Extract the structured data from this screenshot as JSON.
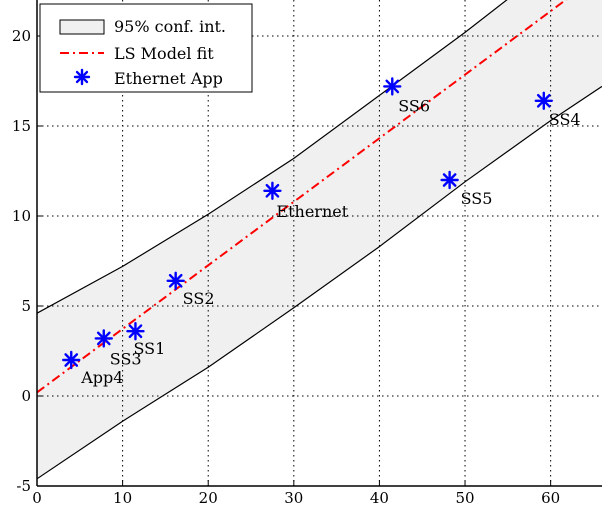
{
  "chart_data": {
    "type": "scatter",
    "title": "",
    "xlabel": "",
    "ylabel": "",
    "xlim": [
      0,
      66
    ],
    "ylim": [
      -5,
      22
    ],
    "xticks": [
      0,
      10,
      20,
      30,
      40,
      50,
      60
    ],
    "yticks": [
      -5,
      0,
      5,
      10,
      15,
      20
    ],
    "grid": true,
    "grid_style": "dotted",
    "legend_position": "top-left",
    "legend": [
      {
        "label": "95% conf. int.",
        "kind": "band"
      },
      {
        "label": "LS Model fit",
        "kind": "line"
      },
      {
        "label": "Ethernet App",
        "kind": "marker"
      }
    ],
    "fit_line": {
      "name": "LS Model fit",
      "x": [
        0,
        66
      ],
      "y": [
        0.2,
        23.5
      ],
      "color": "#ff0000",
      "style": "dash-dot"
    },
    "confidence_band": {
      "name": "95% conf. int.",
      "upper": {
        "x": [
          0,
          10,
          20,
          30,
          40,
          50,
          60,
          66
        ],
        "y": [
          4.6,
          7.2,
          10.1,
          13.2,
          16.7,
          20.2,
          23.9,
          26.1
        ]
      },
      "lower": {
        "x": [
          0,
          10,
          20,
          30,
          40,
          50,
          60,
          66
        ],
        "y": [
          -4.6,
          -1.4,
          1.6,
          4.9,
          8.3,
          11.9,
          15.3,
          17.2
        ]
      },
      "fill": "#f0f0f0",
      "edge": "#000000"
    },
    "series": [
      {
        "name": "Ethernet App",
        "color": "#0000ff",
        "marker": "asterisk",
        "points": [
          {
            "x": 4,
            "y": 2.0,
            "label": "App4"
          },
          {
            "x": 7.8,
            "y": 3.2,
            "label": "SS3"
          },
          {
            "x": 11.5,
            "y": 3.6,
            "label": "SS1"
          },
          {
            "x": 16.2,
            "y": 6.4,
            "label": "SS2"
          },
          {
            "x": 27.5,
            "y": 11.4,
            "label": "Ethernet"
          },
          {
            "x": 41.5,
            "y": 17.2,
            "label": "SS6"
          },
          {
            "x": 48.2,
            "y": 12.0,
            "label": "SS5"
          },
          {
            "x": 59.2,
            "y": 16.4,
            "label": "SS4"
          }
        ]
      }
    ]
  }
}
